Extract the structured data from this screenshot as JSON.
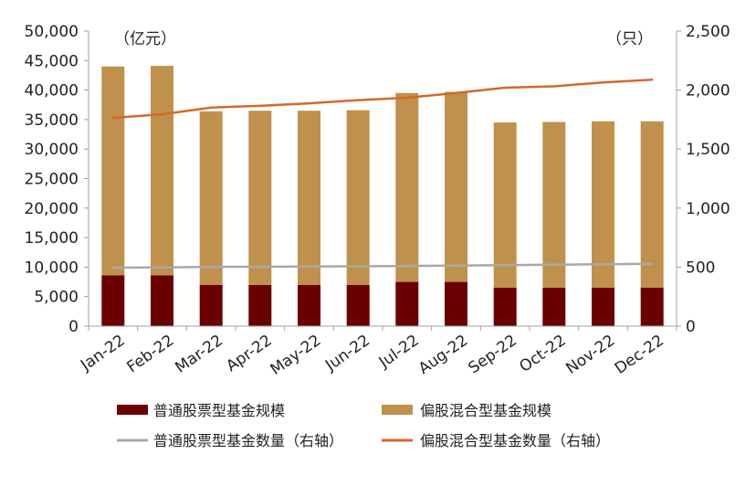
{
  "chart_data": {
    "type": "bar",
    "stacked": true,
    "categories": [
      "Jan-22",
      "Feb-22",
      "Mar-22",
      "Apr-22",
      "May-22",
      "Jun-22",
      "Jul-22",
      "Aug-22",
      "Sep-22",
      "Oct-22",
      "Nov-22",
      "Dec-22"
    ],
    "left_axis": {
      "unit": "（亿元）",
      "ylim": [
        0,
        50000
      ],
      "ticks": [
        "0",
        "5,000",
        "10,000",
        "15,000",
        "20,000",
        "25,000",
        "30,000",
        "35,000",
        "40,000",
        "45,000",
        "50,000"
      ]
    },
    "right_axis": {
      "unit": "（只）",
      "ylim": [
        0,
        2500
      ],
      "ticks": [
        "0",
        "500",
        "1,000",
        "1,500",
        "2,000",
        "2,500"
      ]
    },
    "series": [
      {
        "name": "普通股票型基金规模",
        "type": "bar",
        "axis": "left",
        "color": "#6b0000",
        "values": [
          8600,
          8600,
          7000,
          7000,
          7000,
          7000,
          7500,
          7500,
          6500,
          6500,
          6500,
          6500
        ]
      },
      {
        "name": "偏股混合型基金规模",
        "type": "bar",
        "axis": "left",
        "color": "#c0914d",
        "values": [
          35400,
          35500,
          29400,
          29500,
          29500,
          29600,
          32000,
          32200,
          28000,
          28100,
          28200,
          28200
        ]
      },
      {
        "name": "普通股票型基金数量（右轴）",
        "type": "line",
        "axis": "right",
        "color": "#a8a8a8",
        "values": [
          495,
          497,
          502,
          503,
          505,
          507,
          510,
          513,
          517,
          520,
          525,
          528
        ]
      },
      {
        "name": "偏股混合型基金数量（右轴）",
        "type": "line",
        "axis": "right",
        "color": "#d4692a",
        "values": [
          1765,
          1795,
          1852,
          1866,
          1888,
          1915,
          1935,
          1975,
          2020,
          2032,
          2065,
          2088
        ]
      }
    ],
    "grid": false,
    "legend_position": "bottom"
  }
}
